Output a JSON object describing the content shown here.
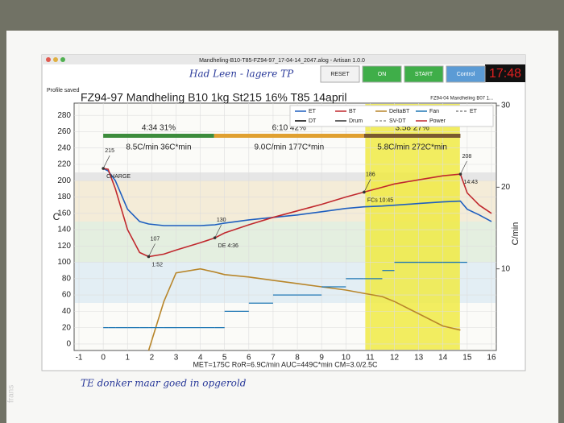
{
  "window": {
    "title": "Mandheling-B10-T85-FZ94-97_17-04-14_2047.alog - Artisan 1.0.0",
    "status": "Profile saved",
    "buttons": [
      {
        "label": "RESET",
        "color": "#f2f2f2"
      },
      {
        "label": "ON",
        "color": "#3fae49"
      },
      {
        "label": "START",
        "color": "#3fae49"
      },
      {
        "label": "Control",
        "color": "#5b9bd5"
      }
    ],
    "clock": "17:48"
  },
  "notes": {
    "top": "Had Leen - lagere TP",
    "bottom_left": "TE donker maar goed in opgerold",
    "watermark": "frans"
  },
  "chart_data": {
    "type": "line",
    "title": "FZ94-97 Mandheling B10 1kg St215 16% T85 14april",
    "subtitle": "FZ94-04 Mandheling B07 1...",
    "ylabel": "C",
    "y2label": "C/min",
    "footer": "MET=175C   RoR=6.9C/min   AUC=449C*min   CM=3.0/2.5C",
    "xlim": [
      -1.2,
      16.2
    ],
    "xticks": [
      -1,
      0,
      1,
      2,
      3,
      4,
      5,
      6,
      7,
      8,
      9,
      10,
      11,
      12,
      13,
      14,
      15,
      16
    ],
    "ylim": [
      -8,
      295
    ],
    "yticks": [
      0,
      20,
      40,
      60,
      80,
      100,
      120,
      140,
      160,
      180,
      200,
      220,
      240,
      260,
      280
    ],
    "y2lim": [
      0,
      30.3
    ],
    "y2ticks": [
      10,
      20,
      30
    ],
    "grid": true,
    "highlight_x": [
      10.8,
      14.7
    ],
    "x": [
      0,
      0.2,
      0.5,
      1,
      1.5,
      1.87,
      2.5,
      3,
      4,
      4.6,
      5,
      6,
      7,
      8,
      9,
      10,
      10.75,
      11.5,
      12,
      13,
      14,
      14.72,
      15,
      15.5,
      16
    ],
    "series": [
      {
        "name": "ET",
        "color": "#1f5fbf",
        "values": [
          215,
          212,
          200,
          165,
          150,
          147,
          145,
          145,
          145,
          146,
          148,
          152,
          155,
          158,
          162,
          166,
          168,
          169,
          170,
          172,
          174,
          175,
          165,
          158,
          150
        ]
      },
      {
        "name": "BT",
        "color": "#c0282d",
        "values": [
          215,
          214,
          190,
          140,
          112,
          107,
          110,
          115,
          124,
          130,
          136,
          146,
          155,
          163,
          171,
          180,
          186,
          192,
          196,
          201,
          206,
          208,
          185,
          170,
          160
        ]
      },
      {
        "name": "DeltaBT",
        "color": "#b8862b",
        "axis": "y2",
        "values": [
          null,
          null,
          null,
          null,
          null,
          0,
          6,
          9.5,
          10,
          9.6,
          9.3,
          9,
          8.6,
          8.2,
          7.8,
          7.4,
          7,
          6.6,
          6,
          4.5,
          3,
          2.5,
          null,
          null,
          null
        ]
      },
      {
        "name": "Fan",
        "color": "#1f77b4",
        "step": true,
        "values": [
          20,
          20,
          20,
          20,
          20,
          20,
          20,
          20,
          20,
          20,
          40,
          50,
          60,
          60,
          70,
          80,
          80,
          90,
          100,
          100,
          100,
          100,
          null,
          null,
          null
        ]
      }
    ],
    "legend_extra": [
      {
        "name": "ET",
        "color": "#888888",
        "dash": true
      },
      {
        "name": "DT",
        "color": "#000000"
      },
      {
        "name": "Drum",
        "color": "#333333"
      },
      {
        "name": "SV-DT",
        "color": "#999999",
        "dash": true
      },
      {
        "name": "Power",
        "color": "#c0282d"
      }
    ],
    "phases": [
      {
        "label": "4:34  31%",
        "rate": "8.5C/min  36C*min",
        "start": 0,
        "end": 4.57,
        "color": "#3c8c3c"
      },
      {
        "label": "6:10  42%",
        "rate": "9.0C/min  177C*min",
        "start": 4.57,
        "end": 10.75,
        "color": "#e0a030"
      },
      {
        "label": "3:58  27%",
        "rate": "5.8C/min  272C*min",
        "start": 10.75,
        "end": 14.72,
        "color": "#7a5a30"
      }
    ],
    "events": [
      {
        "label": "CHARGE",
        "x": 0,
        "y": 215
      },
      {
        "label": "1:52",
        "x": 1.87,
        "y": 107
      },
      {
        "label": "DE 4:36",
        "x": 4.6,
        "y": 130
      },
      {
        "label": "FCs 10:45",
        "x": 10.75,
        "y": 186
      },
      {
        "label": "14:43",
        "x": 14.72,
        "y": 208
      }
    ]
  }
}
